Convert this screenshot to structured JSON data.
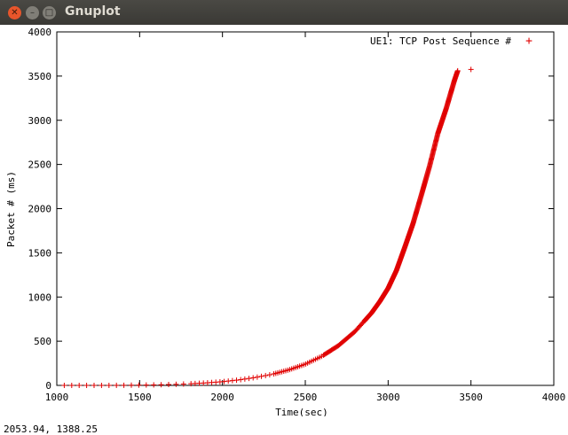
{
  "window": {
    "title": "Gnuplot"
  },
  "status": {
    "coords": "2053.94,  1388.25"
  },
  "chart_data": {
    "type": "scatter",
    "title": "",
    "xlabel": "Time(sec)",
    "ylabel": "Packet # (ms)",
    "xlim": [
      1000,
      4000
    ],
    "ylim": [
      0,
      4000
    ],
    "xticks": [
      "1000",
      "1500",
      "2000",
      "2500",
      "3000",
      "3500",
      "4000"
    ],
    "yticks": [
      "0",
      "500",
      "1000",
      "1500",
      "2000",
      "2500",
      "3000",
      "3500",
      "4000"
    ],
    "grid": false,
    "legend": "top-right",
    "series": [
      {
        "name": "UE1: TCP Post Sequence #",
        "color": "#e00000"
      }
    ],
    "curve": [
      [
        1045,
        0
      ],
      [
        1100,
        0
      ],
      [
        1200,
        0
      ],
      [
        1300,
        0
      ],
      [
        1400,
        1
      ],
      [
        1500,
        3
      ],
      [
        1600,
        6
      ],
      [
        1700,
        11
      ],
      [
        1800,
        18
      ],
      [
        1900,
        28
      ],
      [
        2000,
        42
      ],
      [
        2100,
        62
      ],
      [
        2200,
        90
      ],
      [
        2300,
        125
      ],
      [
        2400,
        175
      ],
      [
        2500,
        240
      ],
      [
        2600,
        330
      ],
      [
        2700,
        450
      ],
      [
        2800,
        610
      ],
      [
        2900,
        820
      ],
      [
        2950,
        950
      ],
      [
        3000,
        1100
      ],
      [
        3050,
        1300
      ],
      [
        3100,
        1560
      ],
      [
        3150,
        1830
      ],
      [
        3200,
        2150
      ],
      [
        3250,
        2480
      ],
      [
        3300,
        2850
      ],
      [
        3350,
        3130
      ],
      [
        3400,
        3450
      ],
      [
        3420,
        3560
      ]
    ],
    "outlier": [
      3500,
      3575
    ]
  }
}
